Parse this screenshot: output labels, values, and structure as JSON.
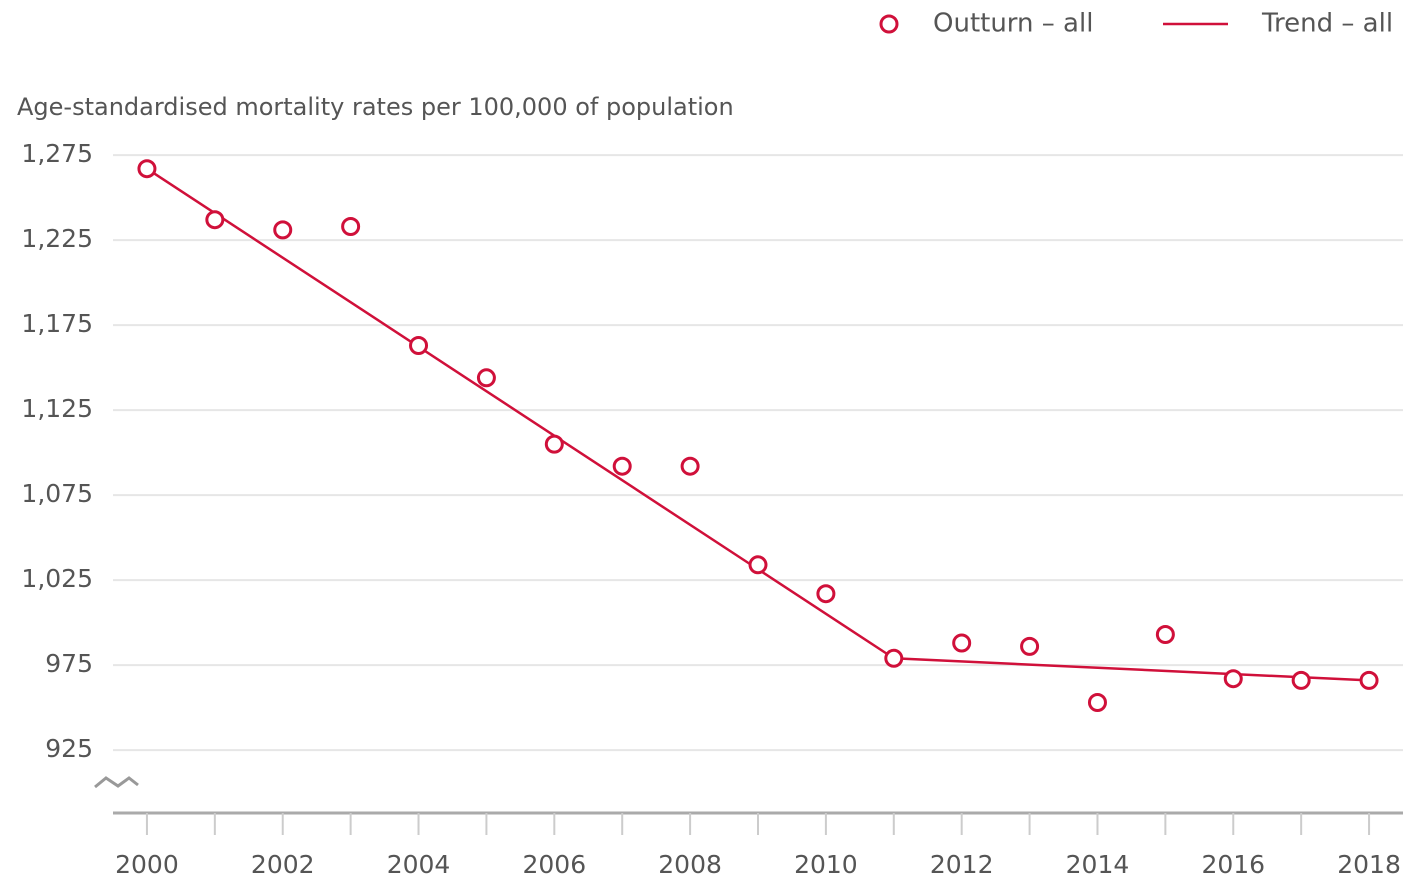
{
  "chart_data": {
    "type": "scatter",
    "y_label": "Age-standardised mortality rates per 100,000 of population",
    "xlim": [
      1999.5,
      2018.5
    ],
    "xticks": [
      2000,
      2002,
      2004,
      2006,
      2008,
      2010,
      2012,
      2014,
      2016,
      2018
    ],
    "ylim": [
      888,
      1278
    ],
    "yticks": [
      {
        "value": 1275,
        "label": "1,275"
      },
      {
        "value": 1225,
        "label": "1,225"
      },
      {
        "value": 1175,
        "label": "1,175"
      },
      {
        "value": 1125,
        "label": "1,125"
      },
      {
        "value": 1075,
        "label": "1,075"
      },
      {
        "value": 1025,
        "label": "1,025"
      },
      975,
      925
    ],
    "grid": true,
    "series": [
      {
        "name": "Outturn – all",
        "color": "#d0103a",
        "style": "markers",
        "x": [
          2000,
          2001,
          2002,
          2003,
          2004,
          2005,
          2006,
          2007,
          2008,
          2009,
          2010,
          2011,
          2012,
          2013,
          2014,
          2015,
          2016,
          2017,
          2018
        ],
        "values": [
          1267,
          1237,
          1231,
          1233,
          1163,
          1144,
          1105,
          1092,
          1092,
          1034,
          1017,
          979,
          988,
          986,
          953,
          993,
          967,
          966,
          966
        ]
      },
      {
        "name": "Trend – all",
        "color": "#d0103a",
        "style": "line",
        "x": [
          2000,
          2011,
          2018
        ],
        "values": [
          1267,
          979,
          966
        ]
      }
    ]
  }
}
